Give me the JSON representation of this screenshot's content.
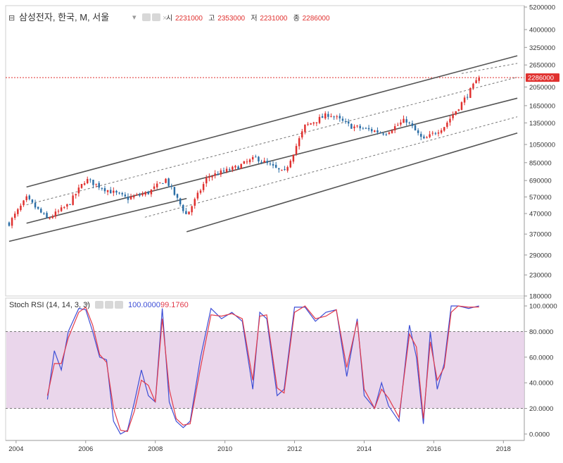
{
  "header": {
    "collapse_glyph": "⊟",
    "symbol_label": "삼성전자, 한국, M, 서울",
    "dropdown_glyph": "▾",
    "ohlc": [
      {
        "key": "시",
        "value": "2231000"
      },
      {
        "key": "고",
        "value": "2353000"
      },
      {
        "key": "저",
        "value": "2231000"
      },
      {
        "key": "종",
        "value": "2286000"
      }
    ]
  },
  "indicator": {
    "label": "Stoch RSI (14, 14, 3, 3)",
    "dropdown_glyph": "▾",
    "k_value": "100.0000",
    "d_value": "99.1760"
  },
  "colors": {
    "up": "#e0312f",
    "down": "#2b6ea6",
    "k_line": "#3d4ed6",
    "d_line": "#e23a4a",
    "band_fill": "#e6cfe8",
    "price_tag": "#e0312f",
    "channel": "#555555"
  },
  "price_axis": {
    "ticks": [
      "5200000",
      "4000000",
      "3250000",
      "2650000",
      "2050000",
      "1650000",
      "1350000",
      "1050000",
      "850000",
      "690000",
      "570000",
      "470000",
      "370000",
      "290000",
      "230000",
      "180000"
    ],
    "last_price_label": "2286000"
  },
  "rsi_axis": {
    "ticks": [
      "100.0000",
      "80.0000",
      "60.0000",
      "40.0000",
      "20.0000",
      "0.0000"
    ],
    "band": [
      20,
      80
    ]
  },
  "time_axis": {
    "ticks": [
      "2004",
      "2006",
      "2008",
      "2010",
      "2012",
      "2014",
      "2016",
      "2018"
    ]
  },
  "chart_data": [
    {
      "type": "candlestick",
      "title": "삼성전자, 한국, M, 서울",
      "y_scale": "log",
      "ylim": [
        180000,
        5200000
      ],
      "xlim": [
        2003.7,
        2018.6
      ],
      "frequency": "monthly",
      "last_close": 2286000,
      "anchors": [
        {
          "x": 2003.8,
          "close": 420000
        },
        {
          "x": 2004.3,
          "close": 560000
        },
        {
          "x": 2004.9,
          "close": 440000
        },
        {
          "x": 2005.5,
          "close": 520000
        },
        {
          "x": 2006.0,
          "close": 700000
        },
        {
          "x": 2006.6,
          "close": 620000
        },
        {
          "x": 2007.2,
          "close": 560000
        },
        {
          "x": 2007.8,
          "close": 600000
        },
        {
          "x": 2008.3,
          "close": 700000
        },
        {
          "x": 2008.9,
          "close": 460000
        },
        {
          "x": 2009.5,
          "close": 720000
        },
        {
          "x": 2010.3,
          "close": 800000
        },
        {
          "x": 2010.9,
          "close": 900000
        },
        {
          "x": 2011.7,
          "close": 750000
        },
        {
          "x": 2012.3,
          "close": 1300000
        },
        {
          "x": 2013.0,
          "close": 1500000
        },
        {
          "x": 2013.6,
          "close": 1300000
        },
        {
          "x": 2014.6,
          "close": 1200000
        },
        {
          "x": 2015.2,
          "close": 1400000
        },
        {
          "x": 2015.7,
          "close": 1100000
        },
        {
          "x": 2016.3,
          "close": 1300000
        },
        {
          "x": 2016.8,
          "close": 1700000
        },
        {
          "x": 2017.3,
          "close": 2286000
        }
      ],
      "channels_solid": [
        {
          "from": [
            2004.3,
            640000
          ],
          "to": [
            2018.4,
            2950000
          ]
        },
        {
          "from": [
            2004.3,
            420000
          ],
          "to": [
            2018.4,
            1800000
          ]
        },
        {
          "from": [
            2003.8,
            340000
          ],
          "to": [
            2008.9,
            560000
          ]
        },
        {
          "from": [
            2008.9,
            380000
          ],
          "to": [
            2018.4,
            1200000
          ]
        }
      ],
      "channels_dashed": [
        {
          "from": [
            2004.3,
            520000
          ],
          "to": [
            2018.4,
            2300000
          ]
        },
        {
          "from": [
            2007.7,
            450000
          ],
          "to": [
            2018.4,
            1450000
          ]
        },
        {
          "from": [
            2016.8,
            2400000
          ],
          "to": [
            2018.4,
            2700000
          ]
        }
      ]
    },
    {
      "type": "line",
      "title": "Stoch RSI (14, 14, 3, 3)",
      "ylim": [
        -5,
        105
      ],
      "xlim": [
        2003.7,
        2018.6
      ],
      "series": [
        {
          "name": "",
          "color": "#3d4ed6",
          "x": [
            2004.9,
            2005.1,
            2005.3,
            2005.5,
            2005.8,
            2006.0,
            2006.2,
            2006.4,
            2006.6,
            2006.8,
            2007.0,
            2007.2,
            2007.4,
            2007.6,
            2007.8,
            2008.0,
            2008.2,
            2008.4,
            2008.6,
            2008.8,
            2009.0,
            2009.3,
            2009.6,
            2009.9,
            2010.2,
            2010.5,
            2010.8,
            2011.0,
            2011.2,
            2011.5,
            2011.7,
            2012.0,
            2012.3,
            2012.6,
            2012.9,
            2013.2,
            2013.5,
            2013.8,
            2014.0,
            2014.3,
            2014.5,
            2014.7,
            2015.0,
            2015.3,
            2015.5,
            2015.7,
            2015.9,
            2016.1,
            2016.3,
            2016.5,
            2016.7,
            2017.0,
            2017.3
          ],
          "values": [
            27,
            65,
            50,
            80,
            98,
            97,
            80,
            60,
            58,
            10,
            0,
            3,
            25,
            50,
            30,
            25,
            98,
            25,
            10,
            5,
            10,
            60,
            98,
            90,
            95,
            88,
            35,
            95,
            90,
            30,
            35,
            99,
            99,
            88,
            95,
            97,
            45,
            90,
            30,
            20,
            40,
            22,
            10,
            85,
            60,
            8,
            80,
            35,
            55,
            100,
            100,
            98,
            100
          ]
        },
        {
          "name": "",
          "color": "#e23a4a",
          "x": [
            2004.9,
            2005.1,
            2005.3,
            2005.5,
            2005.8,
            2006.0,
            2006.2,
            2006.4,
            2006.6,
            2006.8,
            2007.0,
            2007.2,
            2007.4,
            2007.6,
            2007.8,
            2008.0,
            2008.2,
            2008.4,
            2008.6,
            2008.8,
            2009.0,
            2009.3,
            2009.6,
            2009.9,
            2010.2,
            2010.5,
            2010.8,
            2011.0,
            2011.2,
            2011.5,
            2011.7,
            2012.0,
            2012.3,
            2012.6,
            2012.9,
            2013.2,
            2013.5,
            2013.8,
            2014.0,
            2014.3,
            2014.5,
            2014.7,
            2015.0,
            2015.3,
            2015.5,
            2015.7,
            2015.9,
            2016.1,
            2016.3,
            2016.5,
            2016.7,
            2017.0,
            2017.3
          ],
          "values": [
            30,
            55,
            55,
            75,
            95,
            99,
            85,
            62,
            56,
            20,
            3,
            2,
            18,
            42,
            38,
            25,
            90,
            35,
            12,
            7,
            8,
            52,
            93,
            92,
            94,
            90,
            42,
            92,
            93,
            36,
            32,
            95,
            100,
            90,
            92,
            97,
            52,
            88,
            35,
            20,
            35,
            28,
            13,
            78,
            68,
            12,
            72,
            42,
            52,
            95,
            100,
            99,
            99.18
          ]
        }
      ]
    }
  ]
}
